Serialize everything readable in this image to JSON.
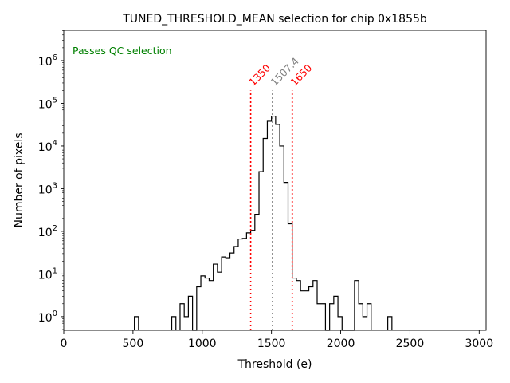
{
  "chart_data": {
    "type": "histogram",
    "title": "TUNED_THRESHOLD_MEAN selection for chip 0x1855b",
    "xlabel": "Threshold (e)",
    "ylabel": "Number of pixels",
    "xlim": [
      0,
      3050
    ],
    "ylim_log10": [
      -0.32,
      6.71
    ],
    "yscale": "log",
    "x_ticks": [
      0,
      500,
      1000,
      1500,
      2000,
      2500,
      3000
    ],
    "x_tick_labels": [
      "0",
      "500",
      "1000",
      "1500",
      "2000",
      "2500",
      "3000"
    ],
    "y_ticks": [
      {
        "mantissa": "10",
        "exponent": "0",
        "value": 1
      },
      {
        "mantissa": "10",
        "exponent": "1",
        "value": 10
      },
      {
        "mantissa": "10",
        "exponent": "2",
        "value": 100
      },
      {
        "mantissa": "10",
        "exponent": "3",
        "value": 1000
      },
      {
        "mantissa": "10",
        "exponent": "4",
        "value": 10000
      },
      {
        "mantissa": "10",
        "exponent": "5",
        "value": 100000
      },
      {
        "mantissa": "10",
        "exponent": "6",
        "value": 1000000
      }
    ],
    "bin_width": 30,
    "histogram_bins": [
      [
        510,
        1
      ],
      [
        780,
        1
      ],
      [
        840,
        2
      ],
      [
        870,
        1
      ],
      [
        900,
        3
      ],
      [
        930,
        0
      ],
      [
        960,
        5
      ],
      [
        990,
        9
      ],
      [
        1020,
        8
      ],
      [
        1050,
        7
      ],
      [
        1080,
        17
      ],
      [
        1110,
        11
      ],
      [
        1140,
        25
      ],
      [
        1170,
        24
      ],
      [
        1200,
        31
      ],
      [
        1230,
        44
      ],
      [
        1260,
        66
      ],
      [
        1290,
        68
      ],
      [
        1320,
        92
      ],
      [
        1350,
        105
      ],
      [
        1380,
        250
      ],
      [
        1410,
        2500
      ],
      [
        1440,
        15000
      ],
      [
        1470,
        38000
      ],
      [
        1500,
        50000
      ],
      [
        1530,
        32000
      ],
      [
        1560,
        10000
      ],
      [
        1590,
        1400
      ],
      [
        1620,
        150
      ],
      [
        1650,
        8
      ],
      [
        1680,
        7
      ],
      [
        1710,
        4
      ],
      [
        1740,
        4
      ],
      [
        1770,
        5
      ],
      [
        1800,
        7
      ],
      [
        1830,
        2
      ],
      [
        1860,
        2
      ],
      [
        1890,
        0
      ],
      [
        1920,
        2
      ],
      [
        1950,
        3
      ],
      [
        1980,
        1
      ],
      [
        2010,
        0
      ],
      [
        2040,
        0
      ],
      [
        2070,
        0
      ],
      [
        2100,
        7
      ],
      [
        2130,
        2
      ],
      [
        2160,
        1
      ],
      [
        2190,
        2
      ],
      [
        2340,
        1
      ]
    ],
    "vertical_lines": [
      {
        "x": 1350,
        "label": "1350",
        "color": "#ff0000",
        "style": "dotted"
      },
      {
        "x": 1507.4,
        "label": "1507.4",
        "color": "#808080",
        "style": "dotted"
      },
      {
        "x": 1650,
        "label": "1650",
        "color": "#ff0000",
        "style": "dotted"
      }
    ],
    "vertical_line_top_value": 200000,
    "annotation": {
      "text": "Passes QC selection",
      "color": "#008000",
      "position": "top-left"
    },
    "grid": false,
    "colors": {
      "histogram": "#000000",
      "axes": "#000000",
      "background": "#ffffff"
    }
  }
}
